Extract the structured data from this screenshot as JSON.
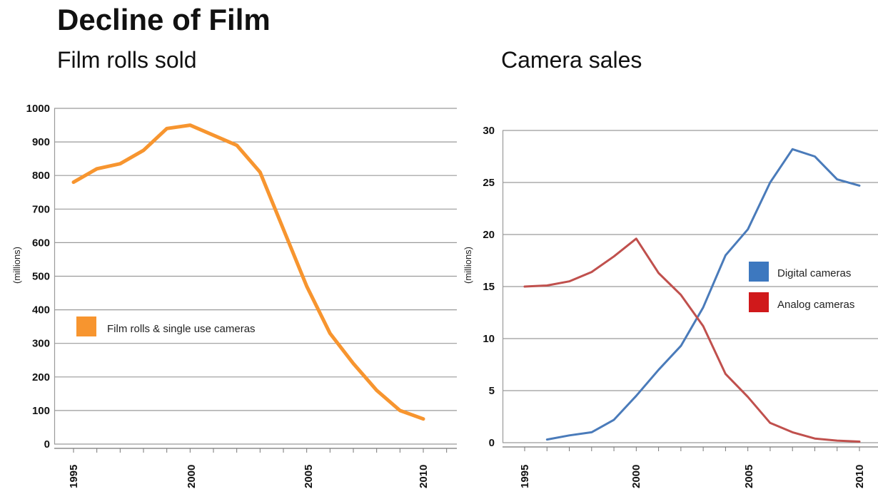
{
  "title": "Decline of Film",
  "chart_data": [
    {
      "type": "line",
      "title": "Film rolls sold",
      "xlabel": "",
      "ylabel": "(millions)",
      "ylim": [
        0,
        1000
      ],
      "xlim": [
        1995,
        2011
      ],
      "y_ticks": [
        "0",
        "100",
        "200",
        "300",
        "400",
        "500",
        "600",
        "700",
        "800",
        "900",
        "1000"
      ],
      "x_ticks": [
        "1995",
        "2000",
        "2005",
        "2010"
      ],
      "grid": true,
      "legend": "left-middle",
      "series": [
        {
          "name": "Film rolls & single use cameras",
          "color": "#f7952f",
          "x": [
            1995,
            1996,
            1997,
            1998,
            1999,
            2000,
            2001,
            2002,
            2003,
            2004,
            2005,
            2006,
            2007,
            2008,
            2009,
            2010
          ],
          "values": [
            780,
            820,
            835,
            875,
            940,
            950,
            920,
            890,
            810,
            640,
            470,
            330,
            240,
            160,
            100,
            75
          ]
        }
      ]
    },
    {
      "type": "line",
      "title": "Camera sales",
      "xlabel": "",
      "ylabel": "(millions)",
      "ylim": [
        0,
        30
      ],
      "xlim": [
        1995,
        2010
      ],
      "y_ticks": [
        "0",
        "5",
        "10",
        "15",
        "20",
        "25",
        "30"
      ],
      "x_ticks": [
        "1995",
        "2000",
        "2005",
        "2010"
      ],
      "grid": true,
      "legend": "right-middle",
      "series": [
        {
          "name": "Digital cameras",
          "color": "#4a7bba",
          "x": [
            1996,
            1997,
            1998,
            1999,
            2000,
            2001,
            2002,
            2003,
            2004,
            2005,
            2006,
            2007,
            2008,
            2009,
            2010
          ],
          "values": [
            0.3,
            0.7,
            1.0,
            2.2,
            4.5,
            7.0,
            9.3,
            13.0,
            18.0,
            20.5,
            25.0,
            28.2,
            27.5,
            25.3,
            24.7
          ]
        },
        {
          "name": "Analog cameras",
          "color": "#c0504d",
          "x": [
            1995,
            1996,
            1997,
            1998,
            1999,
            2000,
            2001,
            2002,
            2003,
            2004,
            2005,
            2006,
            2007,
            2008,
            2009,
            2010
          ],
          "values": [
            15.0,
            15.1,
            15.5,
            16.4,
            17.9,
            19.6,
            16.3,
            14.2,
            11.2,
            6.6,
            4.4,
            1.9,
            1.0,
            0.4,
            0.2,
            0.1
          ]
        }
      ]
    }
  ],
  "legend_swatches": {
    "film": "#f7952f",
    "digital": "#3d78bf",
    "analog": "#d0191b"
  }
}
